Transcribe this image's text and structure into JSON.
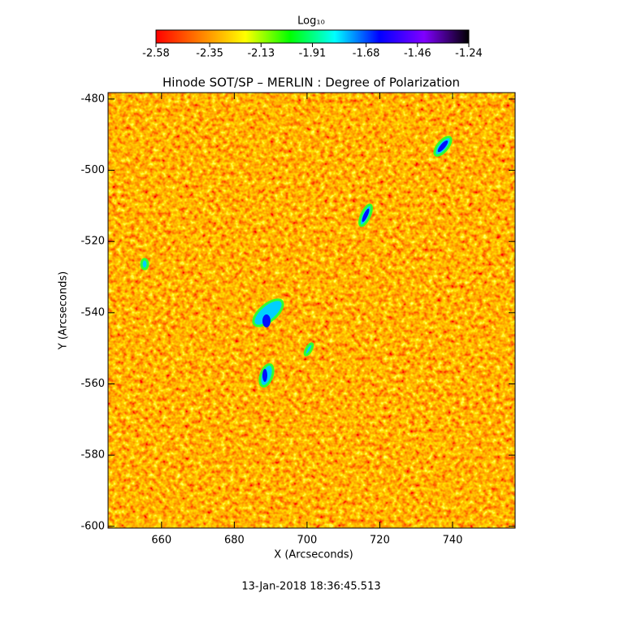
{
  "chart_data": {
    "type": "heatmap",
    "title": "Hinode SOT/SP – MERLIN : Degree of Polarization",
    "xlabel": "X (Arcseconds)",
    "ylabel": "Y (Arcseconds)",
    "xlim": [
      645.3,
      757.2
    ],
    "ylim": [
      -600.5,
      -478.2
    ],
    "xticks": [
      660,
      680,
      700,
      720,
      740
    ],
    "yticks": [
      -480,
      -500,
      -520,
      -540,
      -560,
      -580,
      -600
    ],
    "colorbar_label": "Log₁₀",
    "clim": [
      -2.58,
      -1.24
    ],
    "cticks": [
      -2.58,
      -2.35,
      -2.13,
      -1.91,
      -1.68,
      -1.46,
      -1.24
    ],
    "colormap": [
      "#ff0000",
      "#ff8000",
      "#ffff00",
      "#00ff00",
      "#00ffff",
      "#0000ff",
      "#8000ff",
      "#000000"
    ],
    "timestamp": "13-Jan-2018 18:36:45.513"
  }
}
